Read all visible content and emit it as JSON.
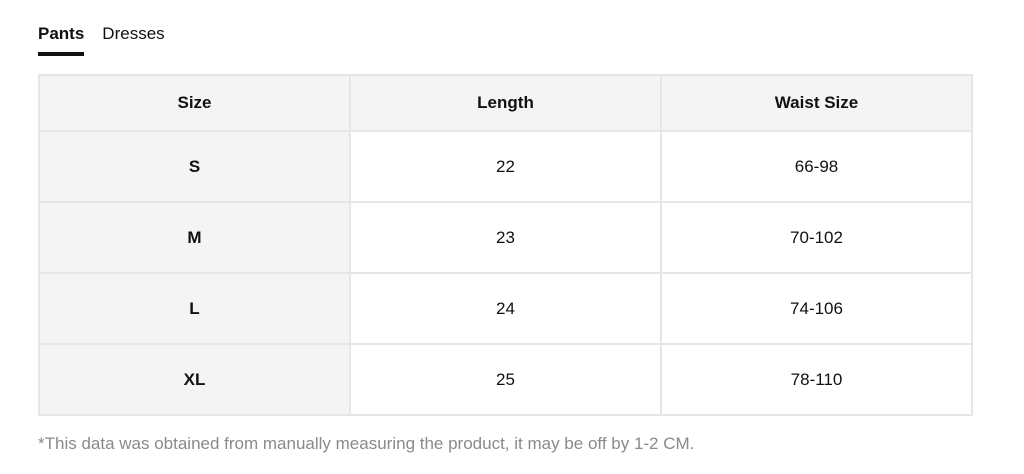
{
  "tabs": [
    {
      "label": "Pants",
      "active": true
    },
    {
      "label": "Dresses",
      "active": false
    }
  ],
  "table": {
    "headers": [
      "Size",
      "Length",
      "Waist Size"
    ],
    "rows": [
      [
        "S",
        "22",
        "66-98"
      ],
      [
        "M",
        "23",
        "70-102"
      ],
      [
        "L",
        "24",
        "74-106"
      ],
      [
        "XL",
        "25",
        "78-110"
      ]
    ]
  },
  "note": "*This data was obtained from manually measuring the product, it may be off by 1-2 CM."
}
